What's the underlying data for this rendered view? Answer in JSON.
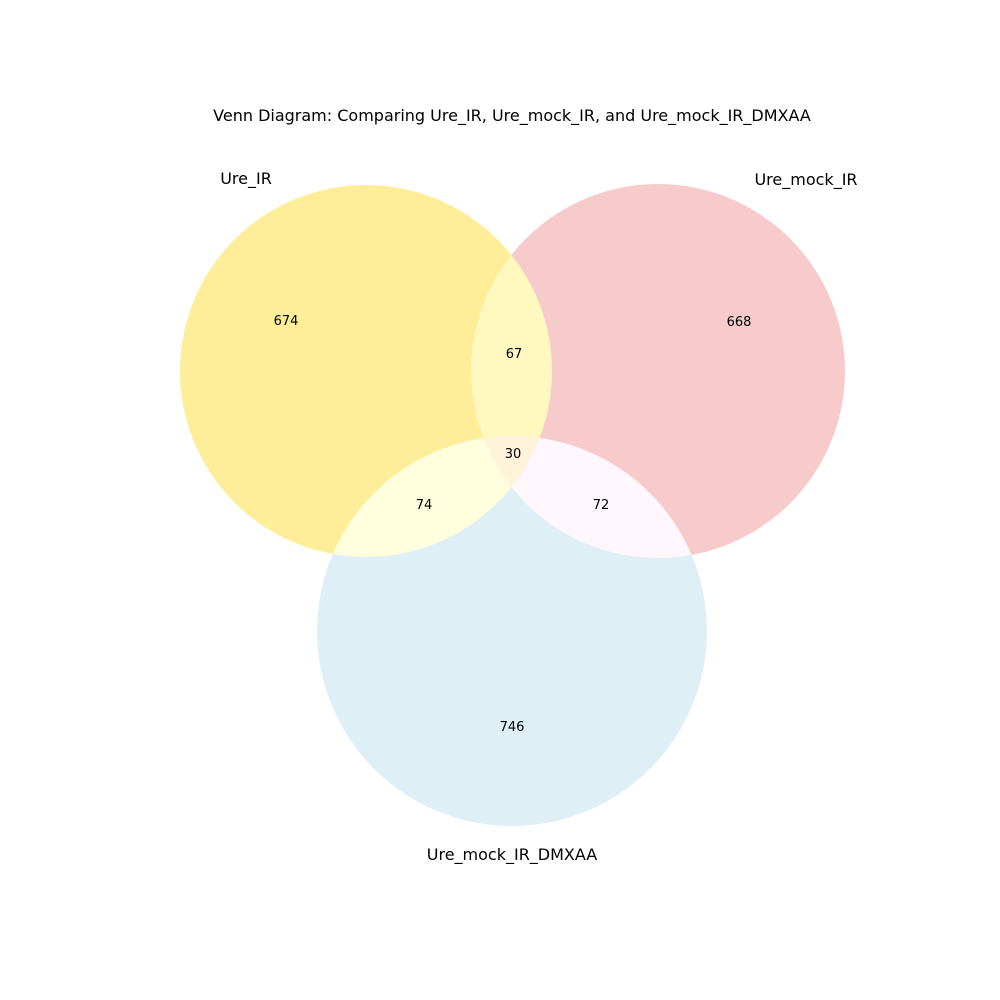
{
  "title": "Venn Diagram: Comparing Ure_IR, Ure_mock_IR, and Ure_mock_IR_DMXAA",
  "sets": [
    {
      "key": "a",
      "name": "Ure_IR",
      "color": "#FFEE99"
    },
    {
      "key": "b",
      "name": "Ure_mock_IR",
      "color": "#F7CBCB"
    },
    {
      "key": "c",
      "name": "Ure_mock_IR_DMXAA",
      "color": "#DFEFF6"
    }
  ],
  "regions": {
    "a_only": "674",
    "b_only": "668",
    "c_only": "746",
    "ab": "67",
    "ac": "74",
    "bc": "72",
    "abc": "30"
  },
  "region_colors": {
    "ab": "#FFF9BF",
    "ac": "#FFFFDD",
    "bc": "#FFF7FC",
    "abc": "#FFF3D9"
  }
}
